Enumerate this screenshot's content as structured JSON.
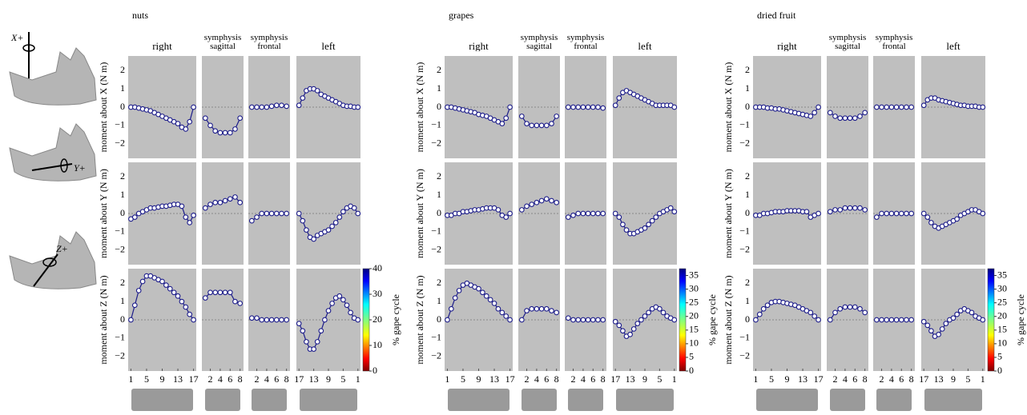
{
  "icon_labels": [
    "X+",
    "Y+",
    "Z+"
  ],
  "chart_data": [
    {
      "type": "line",
      "title": "nuts",
      "color": "#1c1c8a",
      "panel_titles": [
        "right",
        "symphysis sagittal",
        "symphysis frontal",
        "left"
      ],
      "y_labels": [
        "moment about X (N m)",
        "moment about Y (N m)",
        "moment about Z (N m)"
      ],
      "ylim": [
        -2.8,
        2.8
      ],
      "yticks": [
        {
          "value": -2,
          "label": "−2"
        },
        {
          "value": -1,
          "label": "−1"
        },
        0,
        1,
        2
      ],
      "columns": [
        {
          "x": [
            1,
            2,
            3,
            4,
            5,
            6,
            7,
            8,
            9,
            10,
            11,
            12,
            13,
            14,
            15,
            16,
            17
          ],
          "xlim": [
            0.3,
            17.7
          ],
          "xticks": [
            1,
            5,
            9,
            13,
            17
          ]
        },
        {
          "x": [
            1,
            2,
            3,
            4,
            5,
            6,
            7,
            8
          ],
          "xlim": [
            0.3,
            8.7
          ],
          "xticks": [
            2,
            4,
            6,
            8
          ]
        },
        {
          "x": [
            1,
            2,
            3,
            4,
            5,
            6,
            7,
            8
          ],
          "xlim": [
            0.3,
            8.7
          ],
          "xticks": [
            2,
            4,
            6,
            8
          ]
        },
        {
          "x": [
            17,
            16,
            15,
            14,
            13,
            12,
            11,
            10,
            9,
            8,
            7,
            6,
            5,
            4,
            3,
            2,
            1
          ],
          "xlim": [
            17.7,
            0.3
          ],
          "xticks": [
            17,
            13,
            9,
            5,
            1
          ]
        }
      ],
      "rows": [
        [
          [
            0,
            0,
            -0.05,
            -0.1,
            -0.15,
            -0.2,
            -0.3,
            -0.4,
            -0.5,
            -0.6,
            -0.7,
            -0.8,
            -0.9,
            -1.1,
            -1.2,
            -0.8,
            0
          ],
          [
            -0.6,
            -1.0,
            -1.3,
            -1.4,
            -1.4,
            -1.4,
            -1.2,
            -0.6
          ],
          [
            0,
            0,
            0,
            0,
            0.05,
            0.1,
            0.1,
            0.05
          ],
          [
            0.1,
            0.5,
            0.9,
            1.0,
            1.0,
            0.9,
            0.7,
            0.6,
            0.5,
            0.4,
            0.3,
            0.2,
            0.1,
            0.05,
            0.05,
            0,
            0
          ]
        ],
        [
          [
            -0.3,
            -0.2,
            0,
            0.1,
            0.2,
            0.3,
            0.3,
            0.35,
            0.4,
            0.4,
            0.45,
            0.5,
            0.5,
            0.4,
            -0.2,
            -0.5,
            -0.1
          ],
          [
            0.3,
            0.5,
            0.6,
            0.6,
            0.7,
            0.8,
            0.9,
            0.6
          ],
          [
            -0.4,
            -0.2,
            0,
            0,
            0,
            0,
            0,
            0
          ],
          [
            0,
            -0.4,
            -0.9,
            -1.3,
            -1.4,
            -1.2,
            -1.1,
            -1.0,
            -0.9,
            -0.7,
            -0.5,
            -0.2,
            0.1,
            0.3,
            0.4,
            0.3,
            0
          ]
        ],
        [
          [
            0,
            0.8,
            1.6,
            2.1,
            2.4,
            2.4,
            2.3,
            2.2,
            2.1,
            1.9,
            1.7,
            1.5,
            1.3,
            1.0,
            0.7,
            0.3,
            0
          ],
          [
            1.2,
            1.5,
            1.5,
            1.5,
            1.5,
            1.5,
            1.0,
            0.9
          ],
          [
            0.1,
            0.1,
            0,
            0,
            0,
            0,
            0,
            0
          ],
          [
            -0.2,
            -0.6,
            -1.2,
            -1.6,
            -1.6,
            -1.2,
            -0.6,
            0,
            0.5,
            0.9,
            1.2,
            1.3,
            1.1,
            0.8,
            0.4,
            0.1,
            0
          ]
        ]
      ],
      "colorbar": {
        "label": "% gape cycle",
        "lim": [
          0,
          40
        ],
        "ticks": [
          0,
          10,
          20,
          30,
          40
        ]
      }
    },
    {
      "type": "line",
      "title": "grapes",
      "color": "#1c1c8a",
      "panel_titles": [
        "right",
        "symphysis sagittal",
        "symphysis frontal",
        "left"
      ],
      "y_labels": [
        "moment about X (N m)",
        "moment about Y (N m)",
        "moment about Z (N m)"
      ],
      "ylim": [
        -2.8,
        2.8
      ],
      "yticks": [
        {
          "value": -2,
          "label": "−2"
        },
        {
          "value": -1,
          "label": "−1"
        },
        0,
        1,
        2
      ],
      "columns": [
        {
          "x": [
            1,
            2,
            3,
            4,
            5,
            6,
            7,
            8,
            9,
            10,
            11,
            12,
            13,
            14,
            15,
            16,
            17
          ],
          "xlim": [
            0.3,
            17.7
          ],
          "xticks": [
            1,
            5,
            9,
            13,
            17
          ]
        },
        {
          "x": [
            1,
            2,
            3,
            4,
            5,
            6,
            7,
            8
          ],
          "xlim": [
            0.3,
            8.7
          ],
          "xticks": [
            2,
            4,
            6,
            8
          ]
        },
        {
          "x": [
            1,
            2,
            3,
            4,
            5,
            6,
            7,
            8
          ],
          "xlim": [
            0.3,
            8.7
          ],
          "xticks": [
            2,
            4,
            6,
            8
          ]
        },
        {
          "x": [
            17,
            16,
            15,
            14,
            13,
            12,
            11,
            10,
            9,
            8,
            7,
            6,
            5,
            4,
            3,
            2,
            1
          ],
          "xlim": [
            17.7,
            0.3
          ],
          "xticks": [
            17,
            13,
            9,
            5,
            1
          ]
        }
      ],
      "rows": [
        [
          [
            0,
            0,
            -0.05,
            -0.1,
            -0.15,
            -0.2,
            -0.25,
            -0.3,
            -0.4,
            -0.45,
            -0.5,
            -0.6,
            -0.7,
            -0.8,
            -0.9,
            -0.6,
            0
          ],
          [
            -0.5,
            -0.9,
            -1.0,
            -1.0,
            -1.0,
            -1.0,
            -0.9,
            -0.5
          ],
          [
            0,
            0,
            0,
            0,
            0,
            0,
            0,
            -0.05
          ],
          [
            0.1,
            0.5,
            0.8,
            0.9,
            0.8,
            0.7,
            0.6,
            0.5,
            0.4,
            0.3,
            0.2,
            0.1,
            0.1,
            0.1,
            0.1,
            0.1,
            0
          ]
        ],
        [
          [
            -0.1,
            -0.1,
            0,
            0,
            0.1,
            0.1,
            0.15,
            0.2,
            0.2,
            0.25,
            0.3,
            0.3,
            0.3,
            0.2,
            -0.1,
            -0.2,
            0
          ],
          [
            0.2,
            0.4,
            0.5,
            0.6,
            0.7,
            0.8,
            0.7,
            0.6
          ],
          [
            -0.2,
            -0.1,
            0,
            0,
            0,
            0,
            0,
            0
          ],
          [
            0,
            -0.2,
            -0.6,
            -0.9,
            -1.1,
            -1.1,
            -1.0,
            -0.9,
            -0.8,
            -0.6,
            -0.4,
            -0.2,
            0,
            0.1,
            0.2,
            0.3,
            0.1
          ]
        ],
        [
          [
            0,
            0.6,
            1.2,
            1.6,
            1.9,
            2.0,
            1.9,
            1.8,
            1.7,
            1.5,
            1.3,
            1.1,
            0.9,
            0.6,
            0.4,
            0.2,
            0
          ],
          [
            0,
            0.5,
            0.6,
            0.6,
            0.6,
            0.6,
            0.5,
            0.4
          ],
          [
            0.1,
            0,
            0,
            0,
            0,
            0,
            0,
            0
          ],
          [
            -0.1,
            -0.3,
            -0.6,
            -0.9,
            -0.8,
            -0.5,
            -0.2,
            0,
            0.2,
            0.4,
            0.6,
            0.7,
            0.6,
            0.4,
            0.2,
            0.1,
            0
          ]
        ]
      ],
      "colorbar": {
        "label": "% gape cycle",
        "lim": [
          0,
          37.5
        ],
        "ticks": [
          0,
          5,
          10,
          15,
          20,
          25,
          30,
          35
        ]
      }
    },
    {
      "type": "line",
      "title": "dried fruit",
      "color": "#1c1c8a",
      "panel_titles": [
        "right",
        "symphysis sagittal",
        "symphysis frontal",
        "left"
      ],
      "y_labels": [
        "moment about X (N m)",
        "moment about Y (N m)",
        "moment about Z (N m)"
      ],
      "ylim": [
        -2.8,
        2.8
      ],
      "yticks": [
        {
          "value": -2,
          "label": "−2"
        },
        {
          "value": -1,
          "label": "−1"
        },
        0,
        1,
        2
      ],
      "columns": [
        {
          "x": [
            1,
            2,
            3,
            4,
            5,
            6,
            7,
            8,
            9,
            10,
            11,
            12,
            13,
            14,
            15,
            16,
            17
          ],
          "xlim": [
            0.3,
            17.7
          ],
          "xticks": [
            1,
            5,
            9,
            13,
            17
          ]
        },
        {
          "x": [
            1,
            2,
            3,
            4,
            5,
            6,
            7,
            8
          ],
          "xlim": [
            0.3,
            8.7
          ],
          "xticks": [
            2,
            4,
            6,
            8
          ]
        },
        {
          "x": [
            1,
            2,
            3,
            4,
            5,
            6,
            7,
            8
          ],
          "xlim": [
            0.3,
            8.7
          ],
          "xticks": [
            2,
            4,
            6,
            8
          ]
        },
        {
          "x": [
            17,
            16,
            15,
            14,
            13,
            12,
            11,
            10,
            9,
            8,
            7,
            6,
            5,
            4,
            3,
            2,
            1
          ],
          "xlim": [
            17.7,
            0.3
          ],
          "xticks": [
            17,
            13,
            9,
            5,
            1
          ]
        }
      ],
      "rows": [
        [
          [
            0,
            0,
            0,
            -0.05,
            -0.05,
            -0.1,
            -0.1,
            -0.15,
            -0.2,
            -0.25,
            -0.3,
            -0.35,
            -0.4,
            -0.45,
            -0.5,
            -0.3,
            0
          ],
          [
            -0.3,
            -0.5,
            -0.6,
            -0.6,
            -0.6,
            -0.6,
            -0.5,
            -0.3
          ],
          [
            0,
            0,
            0,
            0,
            0,
            0,
            0,
            0
          ],
          [
            0.1,
            0.4,
            0.5,
            0.5,
            0.4,
            0.35,
            0.3,
            0.25,
            0.2,
            0.15,
            0.1,
            0.1,
            0.05,
            0.05,
            0.05,
            0,
            0
          ]
        ],
        [
          [
            -0.1,
            -0.1,
            0,
            0,
            0.05,
            0.1,
            0.1,
            0.1,
            0.15,
            0.15,
            0.15,
            0.15,
            0.1,
            0.1,
            -0.2,
            -0.1,
            0
          ],
          [
            0.1,
            0.2,
            0.2,
            0.3,
            0.3,
            0.3,
            0.3,
            0.2
          ],
          [
            -0.2,
            0,
            0,
            0,
            0,
            0,
            0,
            0
          ],
          [
            0,
            -0.2,
            -0.5,
            -0.7,
            -0.8,
            -0.7,
            -0.6,
            -0.5,
            -0.4,
            -0.3,
            -0.1,
            0,
            0.1,
            0.2,
            0.2,
            0.1,
            0
          ]
        ],
        [
          [
            0,
            0.3,
            0.6,
            0.8,
            0.95,
            1.0,
            1.0,
            0.95,
            0.9,
            0.85,
            0.8,
            0.7,
            0.6,
            0.5,
            0.4,
            0.2,
            0
          ],
          [
            0,
            0.4,
            0.6,
            0.7,
            0.7,
            0.7,
            0.6,
            0.4
          ],
          [
            0,
            0,
            0,
            0,
            0,
            0,
            0,
            0
          ],
          [
            -0.1,
            -0.3,
            -0.6,
            -0.9,
            -0.8,
            -0.5,
            -0.2,
            0,
            0.1,
            0.3,
            0.5,
            0.6,
            0.5,
            0.4,
            0.2,
            0.1,
            0
          ]
        ]
      ],
      "colorbar": {
        "label": "% gape cycle",
        "lim": [
          0,
          37.5
        ],
        "ticks": [
          0,
          5,
          10,
          15,
          20,
          25,
          30,
          35
        ]
      }
    }
  ]
}
